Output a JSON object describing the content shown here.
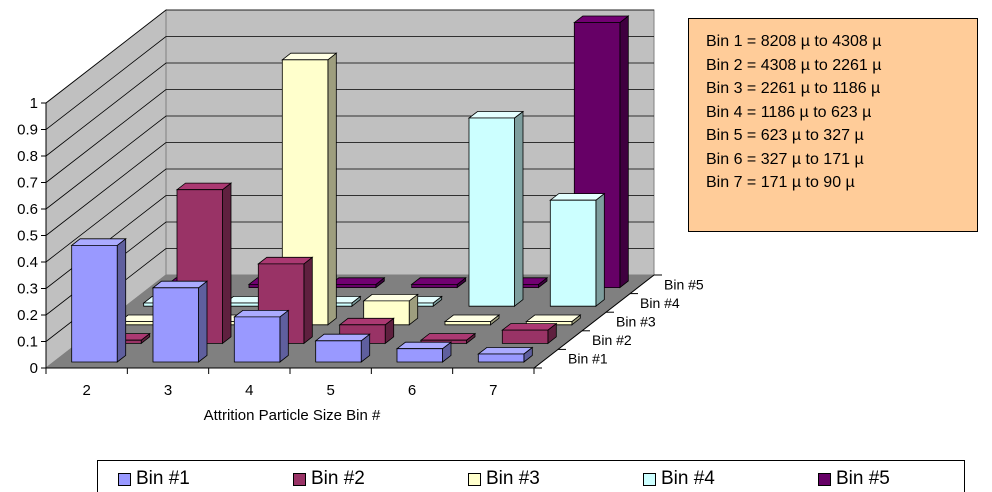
{
  "chart_data": {
    "type": "bar",
    "xlabel": "Attrition Particle Size Bin #",
    "categories": [
      "2",
      "3",
      "4",
      "5",
      "6",
      "7"
    ],
    "series": [
      {
        "name": "Bin #1",
        "values": [
          0.44,
          0.28,
          0.17,
          0.08,
          0.05,
          0.03
        ],
        "color": "#9999ff"
      },
      {
        "name": "Bin #2",
        "values": [
          0.0,
          0.58,
          0.3,
          0.07,
          0.0,
          0.05
        ],
        "color": "#993366"
      },
      {
        "name": "Bin #3",
        "values": [
          0.0,
          0.0,
          1.0,
          0.09,
          0.0,
          0.0
        ],
        "color": "#ffffcc"
      },
      {
        "name": "Bin #4",
        "values": [
          0.0,
          0.0,
          0.0,
          0.0,
          0.71,
          0.4
        ],
        "color": "#ccffff"
      },
      {
        "name": "Bin #5",
        "values": [
          0.0,
          0.0,
          0.0,
          0.0,
          0.0,
          1.0
        ],
        "color": "#660066"
      }
    ],
    "y_ticks": [
      "0",
      "0.1",
      "0.2",
      "0.3",
      "0.4",
      "0.5",
      "0.6",
      "0.7",
      "0.8",
      "0.9",
      "1"
    ],
    "ylim": [
      0,
      1
    ],
    "legend_position": "bottom",
    "grid": true,
    "annotation": [
      "Bin 1 = 8208 µ to 4308 µ",
      "Bin 2 = 4308 µ to 2261 µ",
      "Bin 3 = 2261 µ to 1186 µ",
      "Bin 4 = 1186 µ to 623 µ",
      "Bin 5 = 623 µ to 327 µ",
      "Bin 6 = 327 µ to 171 µ",
      "Bin 7 = 171 µ to 90 µ"
    ],
    "annotation_color": "#ffcc99"
  }
}
